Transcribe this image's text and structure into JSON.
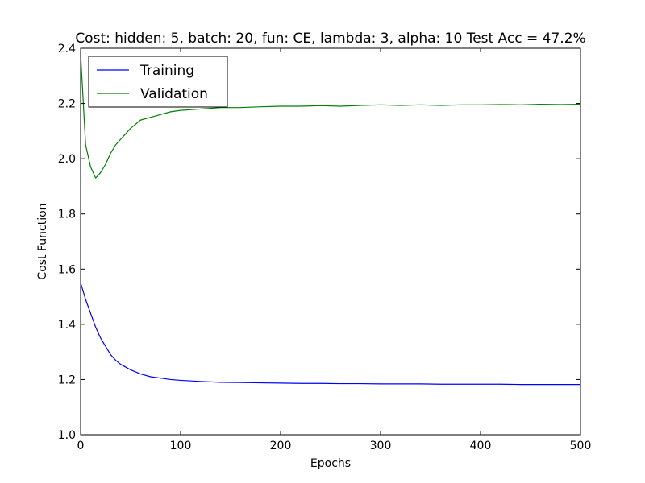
{
  "chart_data": {
    "type": "line",
    "title": "Cost: hidden: 5, batch: 20, fun: CE, lambda: 3, alpha: 10  Test Acc = 47.2%",
    "xlabel": "Epochs",
    "ylabel": "Cost Function",
    "xlim": [
      0,
      500
    ],
    "ylim": [
      1.0,
      2.4
    ],
    "xticks": [
      0,
      100,
      200,
      300,
      400,
      500
    ],
    "xtick_labels": [
      "0",
      "100",
      "200",
      "300",
      "400",
      "500"
    ],
    "yticks": [
      1.0,
      1.2,
      1.4,
      1.6,
      1.8,
      2.0,
      2.2,
      2.4
    ],
    "ytick_labels": [
      "1.0",
      "1.2",
      "1.4",
      "1.6",
      "1.8",
      "2.0",
      "2.2",
      "2.4"
    ],
    "grid": false,
    "legend_position": "top-left",
    "x": [
      0,
      5,
      10,
      15,
      20,
      25,
      30,
      35,
      40,
      50,
      60,
      70,
      80,
      90,
      100,
      120,
      140,
      160,
      180,
      200,
      220,
      240,
      260,
      280,
      300,
      320,
      340,
      360,
      380,
      400,
      420,
      440,
      460,
      480,
      500
    ],
    "series": [
      {
        "name": "Training",
        "color": "#0000ff",
        "values": [
          1.55,
          1.49,
          1.44,
          1.39,
          1.35,
          1.32,
          1.29,
          1.27,
          1.255,
          1.235,
          1.22,
          1.21,
          1.205,
          1.2,
          1.197,
          1.193,
          1.19,
          1.189,
          1.188,
          1.187,
          1.186,
          1.186,
          1.185,
          1.185,
          1.184,
          1.184,
          1.184,
          1.183,
          1.183,
          1.183,
          1.183,
          1.182,
          1.182,
          1.182,
          1.182
        ]
      },
      {
        "name": "Validation",
        "color": "#008000",
        "values": [
          2.38,
          2.05,
          1.97,
          1.93,
          1.95,
          1.98,
          2.02,
          2.05,
          2.07,
          2.11,
          2.14,
          2.15,
          2.16,
          2.17,
          2.175,
          2.18,
          2.185,
          2.185,
          2.188,
          2.19,
          2.19,
          2.192,
          2.19,
          2.193,
          2.195,
          2.193,
          2.195,
          2.193,
          2.195,
          2.195,
          2.196,
          2.195,
          2.197,
          2.196,
          2.197
        ]
      }
    ]
  }
}
